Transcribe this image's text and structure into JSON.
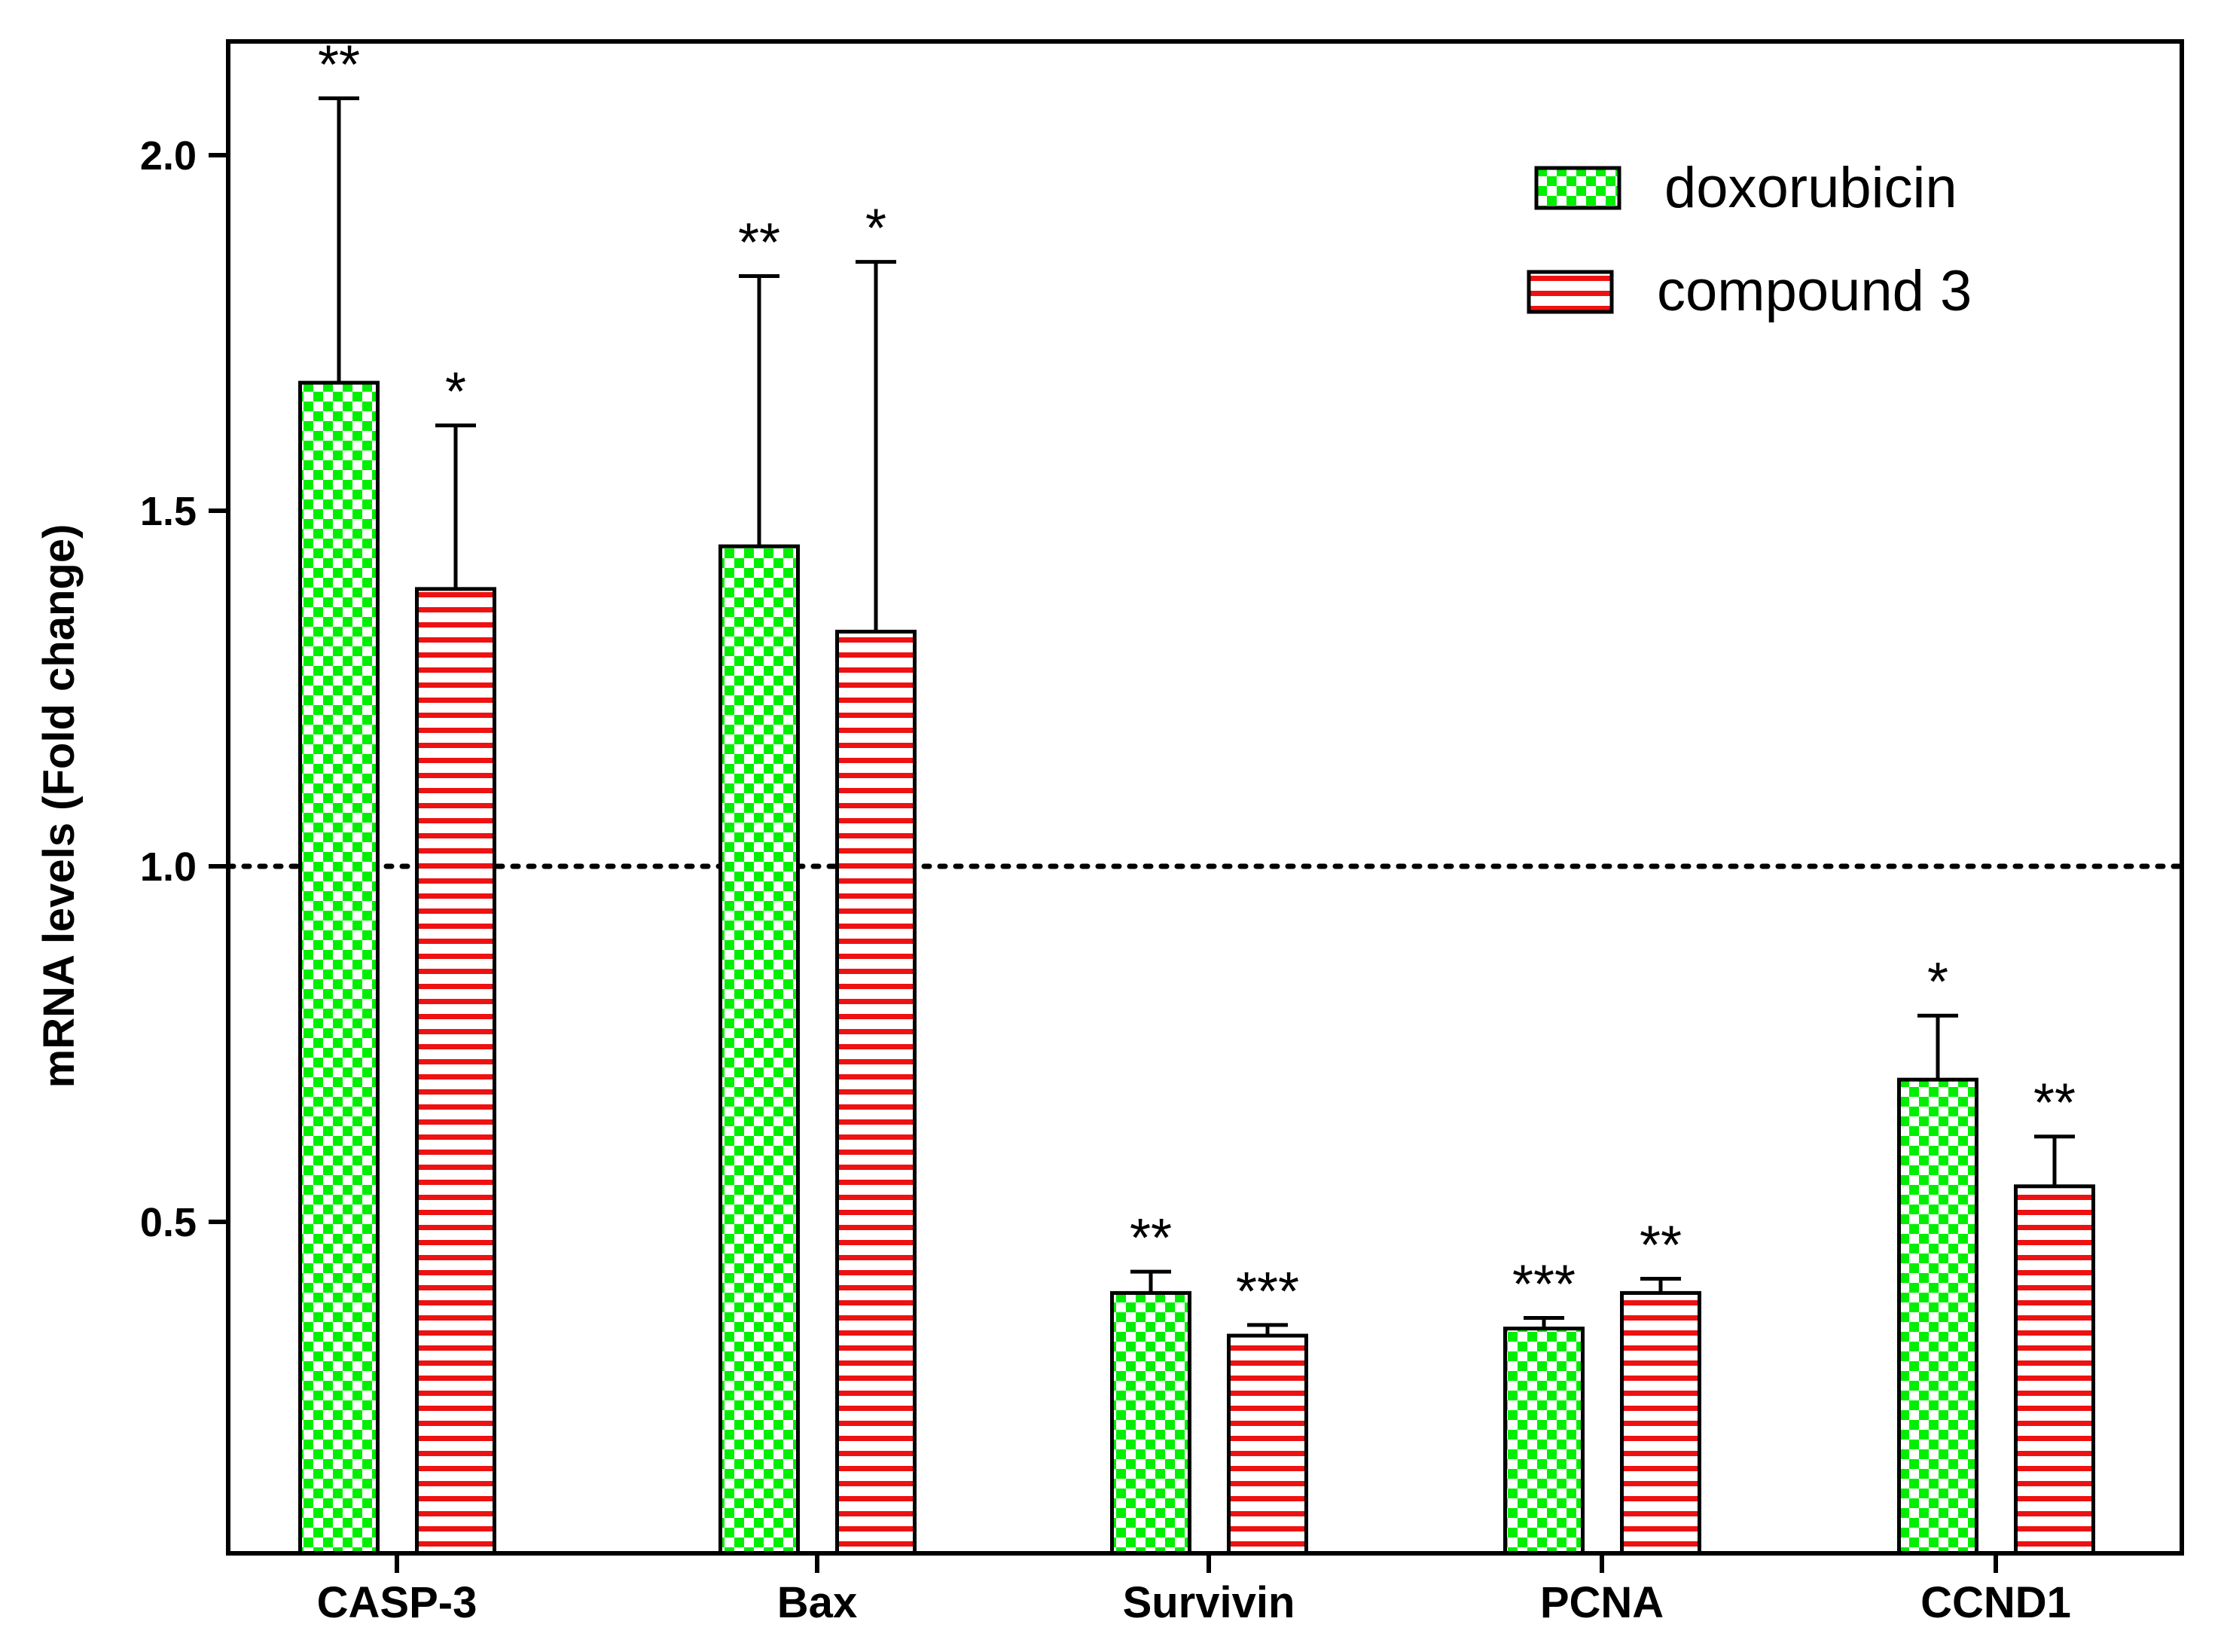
{
  "chart_data": {
    "type": "bar",
    "title": "",
    "xlabel": "",
    "ylabel": "mRNA levels (Fold change)",
    "ylim": [
      0.0,
      2.15
    ],
    "yticks": [
      0.5,
      1.0,
      1.5,
      2.0
    ],
    "ytick_labels": [
      "0.5",
      "1.0",
      "1.5",
      "2.0"
    ],
    "reference_line": 1.0,
    "grid": false,
    "legend_position": "top-right",
    "categories": [
      "CASP-3",
      "Bax",
      "Survivin",
      "PCNA",
      "CCND1"
    ],
    "series": [
      {
        "name": "doxorubicin",
        "pattern": "checkered",
        "color": "#00ee00",
        "values": [
          1.68,
          1.45,
          0.4,
          0.35,
          0.7
        ],
        "errors": [
          0.4,
          0.38,
          0.03,
          0.015,
          0.09
        ],
        "significance": [
          "**",
          "**",
          "**",
          "***",
          "*"
        ]
      },
      {
        "name": "compound 3",
        "pattern": "horizontal-stripes",
        "color": "#ee1111",
        "values": [
          1.39,
          1.33,
          0.34,
          0.4,
          0.55
        ],
        "errors": [
          0.23,
          0.52,
          0.015,
          0.02,
          0.07
        ],
        "significance": [
          "*",
          "*",
          "***",
          "**",
          "**"
        ]
      }
    ]
  }
}
